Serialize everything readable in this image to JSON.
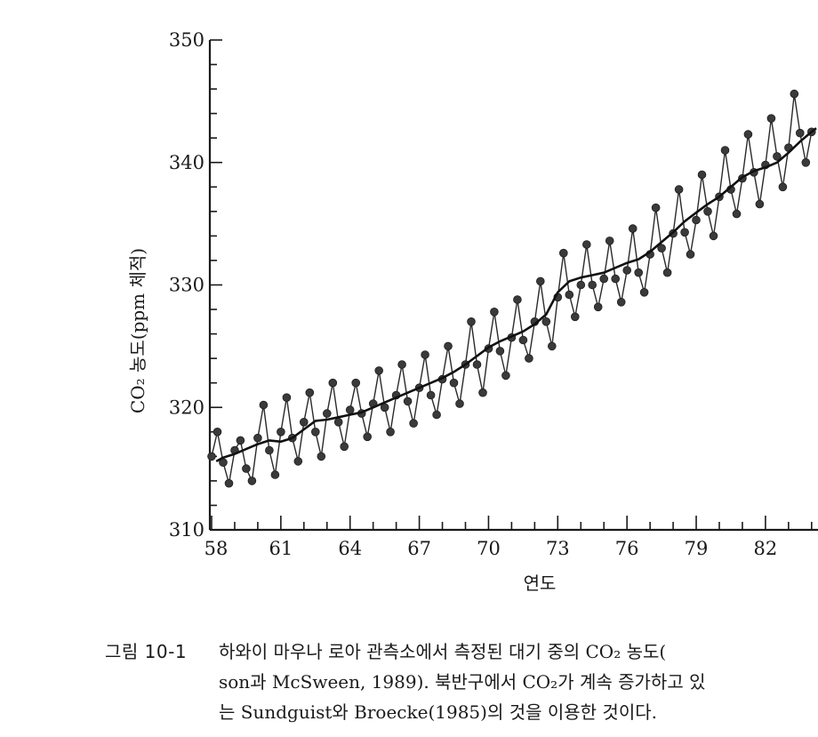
{
  "chart_data": {
    "type": "line",
    "title": "",
    "xlabel": "연도",
    "ylabel": "CO₂ 농도(ppm 체적)",
    "xlim": [
      58,
      84.2
    ],
    "ylim": [
      310,
      350
    ],
    "x_ticks": [
      58,
      61,
      64,
      67,
      70,
      73,
      76,
      79,
      82
    ],
    "x_tick_labels": [
      "58",
      "61",
      "64",
      "67",
      "70",
      "73",
      "76",
      "79",
      "82"
    ],
    "y_ticks": [
      310,
      320,
      330,
      340,
      350
    ],
    "y_tick_labels": [
      "310",
      "320",
      "330",
      "340",
      "350"
    ],
    "grid": false,
    "legend": "none",
    "series": [
      {
        "style": "monthly-points",
        "x": [
          58.0,
          58.25,
          58.5,
          58.75,
          59.0,
          59.25,
          59.5,
          59.75,
          60.0,
          60.25,
          60.5,
          60.75,
          61.0,
          61.25,
          61.5,
          61.75,
          62.0,
          62.25,
          62.5,
          62.75,
          63.0,
          63.25,
          63.5,
          63.75,
          64.0,
          64.25,
          64.5,
          64.75,
          65.0,
          65.25,
          65.5,
          65.75,
          66.0,
          66.25,
          66.5,
          66.75,
          67.0,
          67.25,
          67.5,
          67.75,
          68.0,
          68.25,
          68.5,
          68.75,
          69.0,
          69.25,
          69.5,
          69.75,
          70.0,
          70.25,
          70.5,
          70.75,
          71.0,
          71.25,
          71.5,
          71.75,
          72.0,
          72.25,
          72.5,
          72.75,
          73.0,
          73.25,
          73.5,
          73.75,
          74.0,
          74.25,
          74.5,
          74.75,
          75.0,
          75.25,
          75.5,
          75.75,
          76.0,
          76.25,
          76.5,
          76.75,
          77.0,
          77.25,
          77.5,
          77.75,
          78.0,
          78.25,
          78.5,
          78.75,
          79.0,
          79.25,
          79.5,
          79.75,
          80.0,
          80.25,
          80.5,
          80.75,
          81.0,
          81.25,
          81.5,
          81.75,
          82.0,
          82.25,
          82.5,
          82.75,
          83.0,
          83.25,
          83.5,
          83.75,
          84.0
        ],
        "y": [
          316.0,
          318.0,
          315.5,
          313.8,
          316.5,
          317.3,
          315.0,
          314.0,
          317.5,
          320.2,
          316.5,
          314.5,
          318.0,
          320.8,
          317.5,
          315.6,
          318.8,
          321.2,
          318.0,
          316.0,
          319.5,
          322.0,
          318.8,
          316.8,
          319.8,
          322.0,
          319.5,
          317.6,
          320.3,
          323.0,
          320.0,
          318.0,
          321.0,
          323.5,
          320.5,
          318.7,
          321.6,
          324.3,
          321.0,
          319.4,
          322.3,
          325.0,
          322.0,
          320.3,
          323.5,
          327.0,
          323.5,
          321.2,
          324.8,
          327.8,
          324.6,
          322.6,
          325.7,
          328.8,
          325.5,
          324.0,
          327.0,
          330.3,
          327.0,
          325.0,
          329.0,
          332.6,
          329.2,
          327.4,
          330.0,
          333.3,
          330.0,
          328.2,
          330.5,
          333.6,
          330.5,
          328.6,
          331.2,
          334.6,
          331.0,
          329.4,
          332.5,
          336.3,
          333.0,
          331.0,
          334.2,
          337.8,
          334.3,
          332.5,
          335.3,
          339.0,
          336.0,
          334.0,
          337.2,
          341.0,
          337.8,
          335.8,
          338.7,
          342.3,
          339.2,
          336.6,
          339.8,
          343.6,
          340.5,
          338.0,
          341.2,
          345.6,
          342.4,
          340.0,
          342.5
        ]
      },
      {
        "style": "trend-line",
        "x": [
          58.2,
          58.5,
          59,
          59.5,
          60,
          60.5,
          61,
          61.5,
          62,
          62.5,
          63,
          63.5,
          64,
          64.5,
          65,
          65.5,
          66,
          66.5,
          67,
          67.5,
          68,
          68.5,
          69,
          69.5,
          70,
          70.5,
          71,
          71.5,
          72,
          72.5,
          73,
          73.5,
          74,
          74.5,
          75,
          75.5,
          76,
          76.5,
          77,
          77.5,
          78,
          78.5,
          79,
          79.5,
          80,
          80.5,
          81,
          81.5,
          82,
          82.5,
          83,
          83.5,
          84,
          84.2
        ],
        "y": [
          315.6,
          315.9,
          316.2,
          316.6,
          317.0,
          317.3,
          317.2,
          317.5,
          318.2,
          318.9,
          319.0,
          319.2,
          319.4,
          319.6,
          320.0,
          320.4,
          320.8,
          321.2,
          321.6,
          322.0,
          322.4,
          322.9,
          323.5,
          324.2,
          324.9,
          325.4,
          325.8,
          326.2,
          326.8,
          327.6,
          329.4,
          330.3,
          330.6,
          330.8,
          331.0,
          331.4,
          331.8,
          332.1,
          332.7,
          333.5,
          334.3,
          335.2,
          335.9,
          336.6,
          337.2,
          338.0,
          338.8,
          339.3,
          339.6,
          340.0,
          340.8,
          341.7,
          342.5,
          342.8
        ]
      }
    ]
  },
  "caption": {
    "label": "그림 10-1",
    "line1": "하와이 마우나 로아 관측소에서 측정된 대기 중의 CO₂ 농도(",
    "line2": "son과 McSween, 1989). 북반구에서 CO₂가 계속 증가하고 있",
    "line3": "는 Sundguist와 Broecke(1985)의 것을 이용한 것이다."
  }
}
